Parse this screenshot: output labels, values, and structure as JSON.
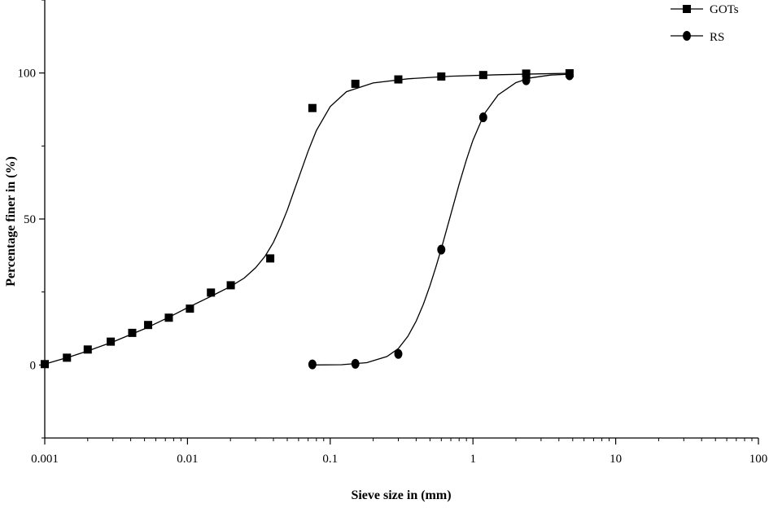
{
  "chart_data": {
    "type": "scatter",
    "title": "",
    "xlabel": "Sieve size in (mm)",
    "ylabel": "Percentage finer in  (%)",
    "x_scale": "log",
    "xlim": [
      0.001,
      100
    ],
    "ylim": [
      -25,
      125
    ],
    "x_ticks": [
      {
        "value": 0.001,
        "label": "0.001"
      },
      {
        "value": 0.01,
        "label": "0.01"
      },
      {
        "value": 0.1,
        "label": "0.1"
      },
      {
        "value": 1,
        "label": "1"
      },
      {
        "value": 10,
        "label": "10"
      },
      {
        "value": 100,
        "label": "100"
      }
    ],
    "y_ticks": [
      {
        "value": 0,
        "label": "0"
      },
      {
        "value": 50,
        "label": "50"
      },
      {
        "value": 100,
        "label": "100"
      }
    ],
    "grid": false,
    "legend_position": "top-right",
    "series": [
      {
        "name": "GOTs",
        "marker": "square",
        "points": [
          [
            0.001,
            0.3
          ],
          [
            0.00143,
            2.5
          ],
          [
            0.002,
            5.3
          ],
          [
            0.0029,
            8.0
          ],
          [
            0.0041,
            11.0
          ],
          [
            0.0053,
            13.7
          ],
          [
            0.0074,
            16.2
          ],
          [
            0.0104,
            19.3
          ],
          [
            0.0146,
            24.8
          ],
          [
            0.0201,
            27.3
          ],
          [
            0.038,
            36.5
          ],
          [
            0.075,
            88.0
          ],
          [
            0.15,
            96.3
          ],
          [
            0.3,
            97.8
          ],
          [
            0.6,
            98.8
          ],
          [
            1.18,
            99.3
          ],
          [
            2.36,
            99.8
          ],
          [
            4.75,
            99.9
          ]
        ],
        "curve": [
          [
            0.001,
            0.3
          ],
          [
            0.0015,
            2.8
          ],
          [
            0.002,
            4.8
          ],
          [
            0.003,
            7.9
          ],
          [
            0.005,
            12.4
          ],
          [
            0.0075,
            16.5
          ],
          [
            0.01,
            19.6
          ],
          [
            0.015,
            23.8
          ],
          [
            0.02,
            26.9
          ],
          [
            0.025,
            29.8
          ],
          [
            0.03,
            33.3
          ],
          [
            0.035,
            37.3
          ],
          [
            0.04,
            42.0
          ],
          [
            0.045,
            47.5
          ],
          [
            0.05,
            53.0
          ],
          [
            0.055,
            58.8
          ],
          [
            0.06,
            64.0
          ],
          [
            0.07,
            73.2
          ],
          [
            0.08,
            80.3
          ],
          [
            0.1,
            88.5
          ],
          [
            0.13,
            93.6
          ],
          [
            0.2,
            96.6
          ],
          [
            0.35,
            98.0
          ],
          [
            0.7,
            98.9
          ],
          [
            1.5,
            99.4
          ],
          [
            3,
            99.7
          ],
          [
            4.75,
            99.9
          ]
        ]
      },
      {
        "name": "RS",
        "marker": "circle",
        "points": [
          [
            0.075,
            0.2
          ],
          [
            0.15,
            0.4
          ],
          [
            0.3,
            3.8
          ],
          [
            0.6,
            39.5
          ],
          [
            1.18,
            84.8
          ],
          [
            2.36,
            97.5
          ],
          [
            4.75,
            99.2
          ]
        ],
        "curve": [
          [
            0.075,
            0.0
          ],
          [
            0.12,
            0.1
          ],
          [
            0.18,
            0.8
          ],
          [
            0.25,
            2.9
          ],
          [
            0.3,
            5.6
          ],
          [
            0.35,
            9.8
          ],
          [
            0.4,
            15.0
          ],
          [
            0.45,
            20.9
          ],
          [
            0.5,
            27.2
          ],
          [
            0.55,
            33.6
          ],
          [
            0.6,
            39.8
          ],
          [
            0.7,
            51.6
          ],
          [
            0.8,
            61.9
          ],
          [
            0.9,
            70.3
          ],
          [
            1.0,
            77.0
          ],
          [
            1.2,
            86.0
          ],
          [
            1.5,
            92.5
          ],
          [
            2.0,
            96.7
          ],
          [
            2.5,
            98.3
          ],
          [
            3.5,
            99.3
          ],
          [
            4.75,
            99.6
          ]
        ]
      }
    ]
  }
}
